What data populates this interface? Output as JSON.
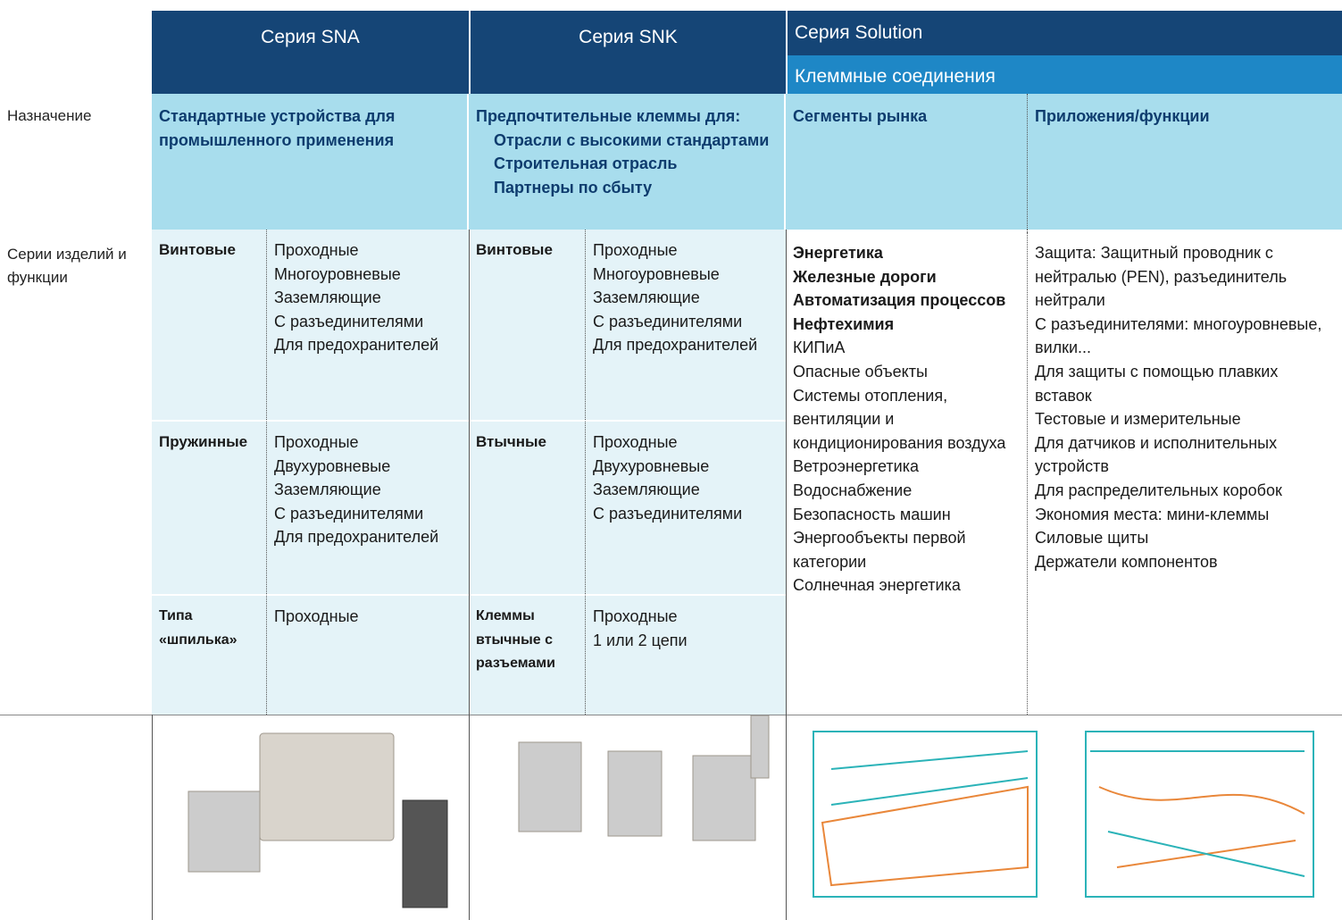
{
  "header": {
    "sna": "Серия SNA",
    "snk": "Серия SNK",
    "solution": "Серия Solution",
    "solution_sub": "Клеммные соединения"
  },
  "purpose": {
    "label": "Назначение",
    "sna": "Стандартные устройства для промышленного применения",
    "snk_title": "Предпочтительные клеммы для:",
    "snk_items": [
      "Отрасли с высокими стандартами",
      "Строительная отрасль",
      "Партнеры по сбыту"
    ],
    "segments": "Сегменты рынка",
    "applications": "Приложения/функции"
  },
  "products": {
    "label": "Серии изделий и функции",
    "sna": [
      {
        "type": "Винтовые",
        "items": [
          "Проходные",
          "Многоуровневые",
          "Заземляющие",
          "С разъединителями",
          "Для предохранителей"
        ]
      },
      {
        "type": "Пружинные",
        "items": [
          "Проходные",
          "Двухуровневые",
          "Заземляющие",
          "С разъединителями",
          "Для предохранителей"
        ]
      },
      {
        "type": "Типа «шпилька»",
        "items": [
          "Проходные"
        ]
      }
    ],
    "snk": [
      {
        "type": "Винтовые",
        "items": [
          "Проходные",
          "Многоуровневые",
          "Заземляющие",
          "С разъединителями",
          "Для предохранителей"
        ]
      },
      {
        "type": "Втычные",
        "items": [
          "Проходные",
          "Двухуровневые",
          "Заземляющие",
          "С разъединителями"
        ]
      },
      {
        "type": "Клеммы втычные с разъемами",
        "items": [
          "Проходные",
          "1 или 2 цепи"
        ]
      }
    ],
    "segments_main": [
      "Энергетика",
      "Железные дороги",
      "Автоматизация процессов",
      "Нефтехимия"
    ],
    "segments_other": [
      "КИПиА",
      "Опасные объекты",
      "Системы отопления, вентиляции и кондиционирования воздуха",
      "Ветроэнергетика",
      "Водоснабжение",
      "Безопасность машин",
      "Энергообъекты первой категории",
      "Солнечная энергетика"
    ],
    "applications": [
      "Защита: Защитный проводник с нейтралью (PEN), разъединитель нейтрали",
      "С разъединителями: многоуровневые, вилки...",
      "Для защиты с помощью плавких вставок",
      "Тестовые и измерительные",
      "Для датчиков и исполнительных устройств",
      "Для распределительных коробок",
      "Экономия места: мини-клеммы",
      "Силовые щиты",
      "Держатели компонентов"
    ]
  }
}
